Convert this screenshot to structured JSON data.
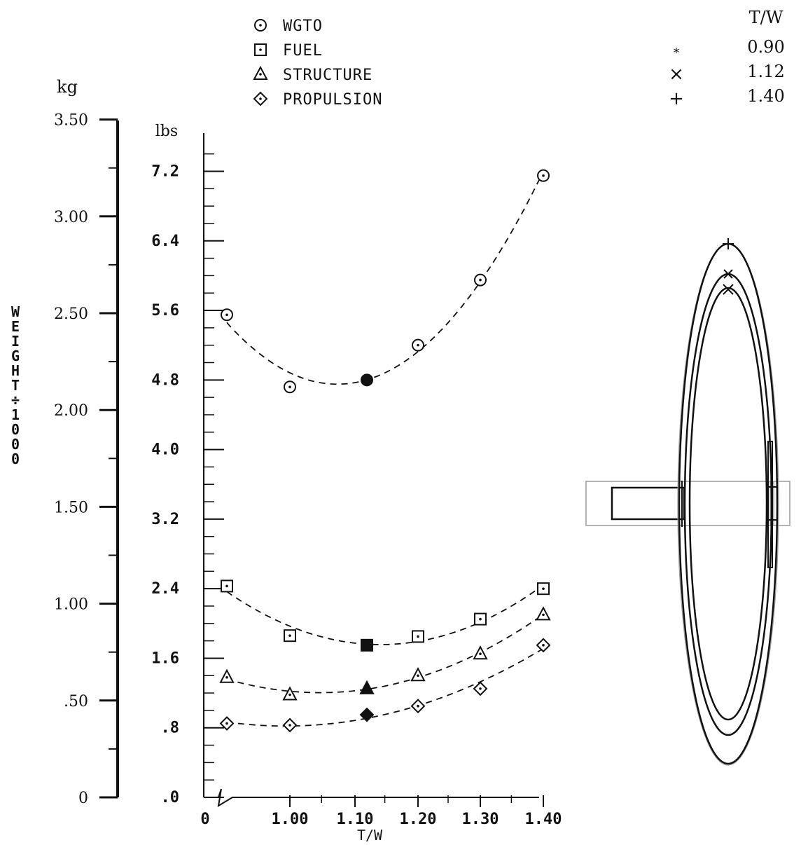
{
  "chart_data": {
    "type": "scatter",
    "title": "",
    "xlabel": "T/W",
    "ylabel": "WEIGHT ÷ 1000",
    "x_tick_labels": [
      "0",
      "1.00",
      "1.10",
      "1.20",
      "1.30",
      "1.40"
    ],
    "kg_axis": {
      "unit": "kg",
      "ticks": [
        "0",
        ".50",
        "1.00",
        "1.50",
        "2.00",
        "2.50",
        "3.00",
        "3.50"
      ],
      "ylim": [
        0,
        3.5
      ]
    },
    "lbs_axis": {
      "unit": "lbs",
      "ticks": [
        ".0",
        ".8",
        "1.6",
        "2.4",
        "3.2",
        "4.0",
        "4.8",
        "5.6",
        "6.4",
        "7.2"
      ],
      "ylim": [
        0,
        7.6
      ]
    },
    "x": [
      0.9,
      1.0,
      1.12,
      1.2,
      1.3,
      1.4
    ],
    "series": [
      {
        "name": "WGTO",
        "marker": "circle-dot",
        "values": [
          5.55,
          4.72,
          4.8,
          5.2,
          5.95,
          7.15
        ]
      },
      {
        "name": "FUEL",
        "marker": "square-dot",
        "values": [
          2.43,
          1.86,
          1.75,
          1.85,
          2.05,
          2.4
        ]
      },
      {
        "name": "STRUCTURE",
        "marker": "triangle-dot",
        "values": [
          1.38,
          1.18,
          1.25,
          1.4,
          1.65,
          2.1
        ]
      },
      {
        "name": "PROPULSION",
        "marker": "diamond-dot",
        "values": [
          0.85,
          0.83,
          0.95,
          1.05,
          1.25,
          1.75
        ]
      }
    ],
    "highlight_x": 1.12,
    "legend": {
      "placement": "top",
      "tw_header": "T/W",
      "tw_entries": [
        {
          "symbol": "*",
          "value": "0.90"
        },
        {
          "symbol": "×",
          "value": "1.12"
        },
        {
          "symbol": "+",
          "value": "1.40"
        }
      ]
    },
    "grid": false
  },
  "colors": {
    "ink": "#111111",
    "paper": "#ffffff",
    "faint": "#9a9a9a"
  }
}
